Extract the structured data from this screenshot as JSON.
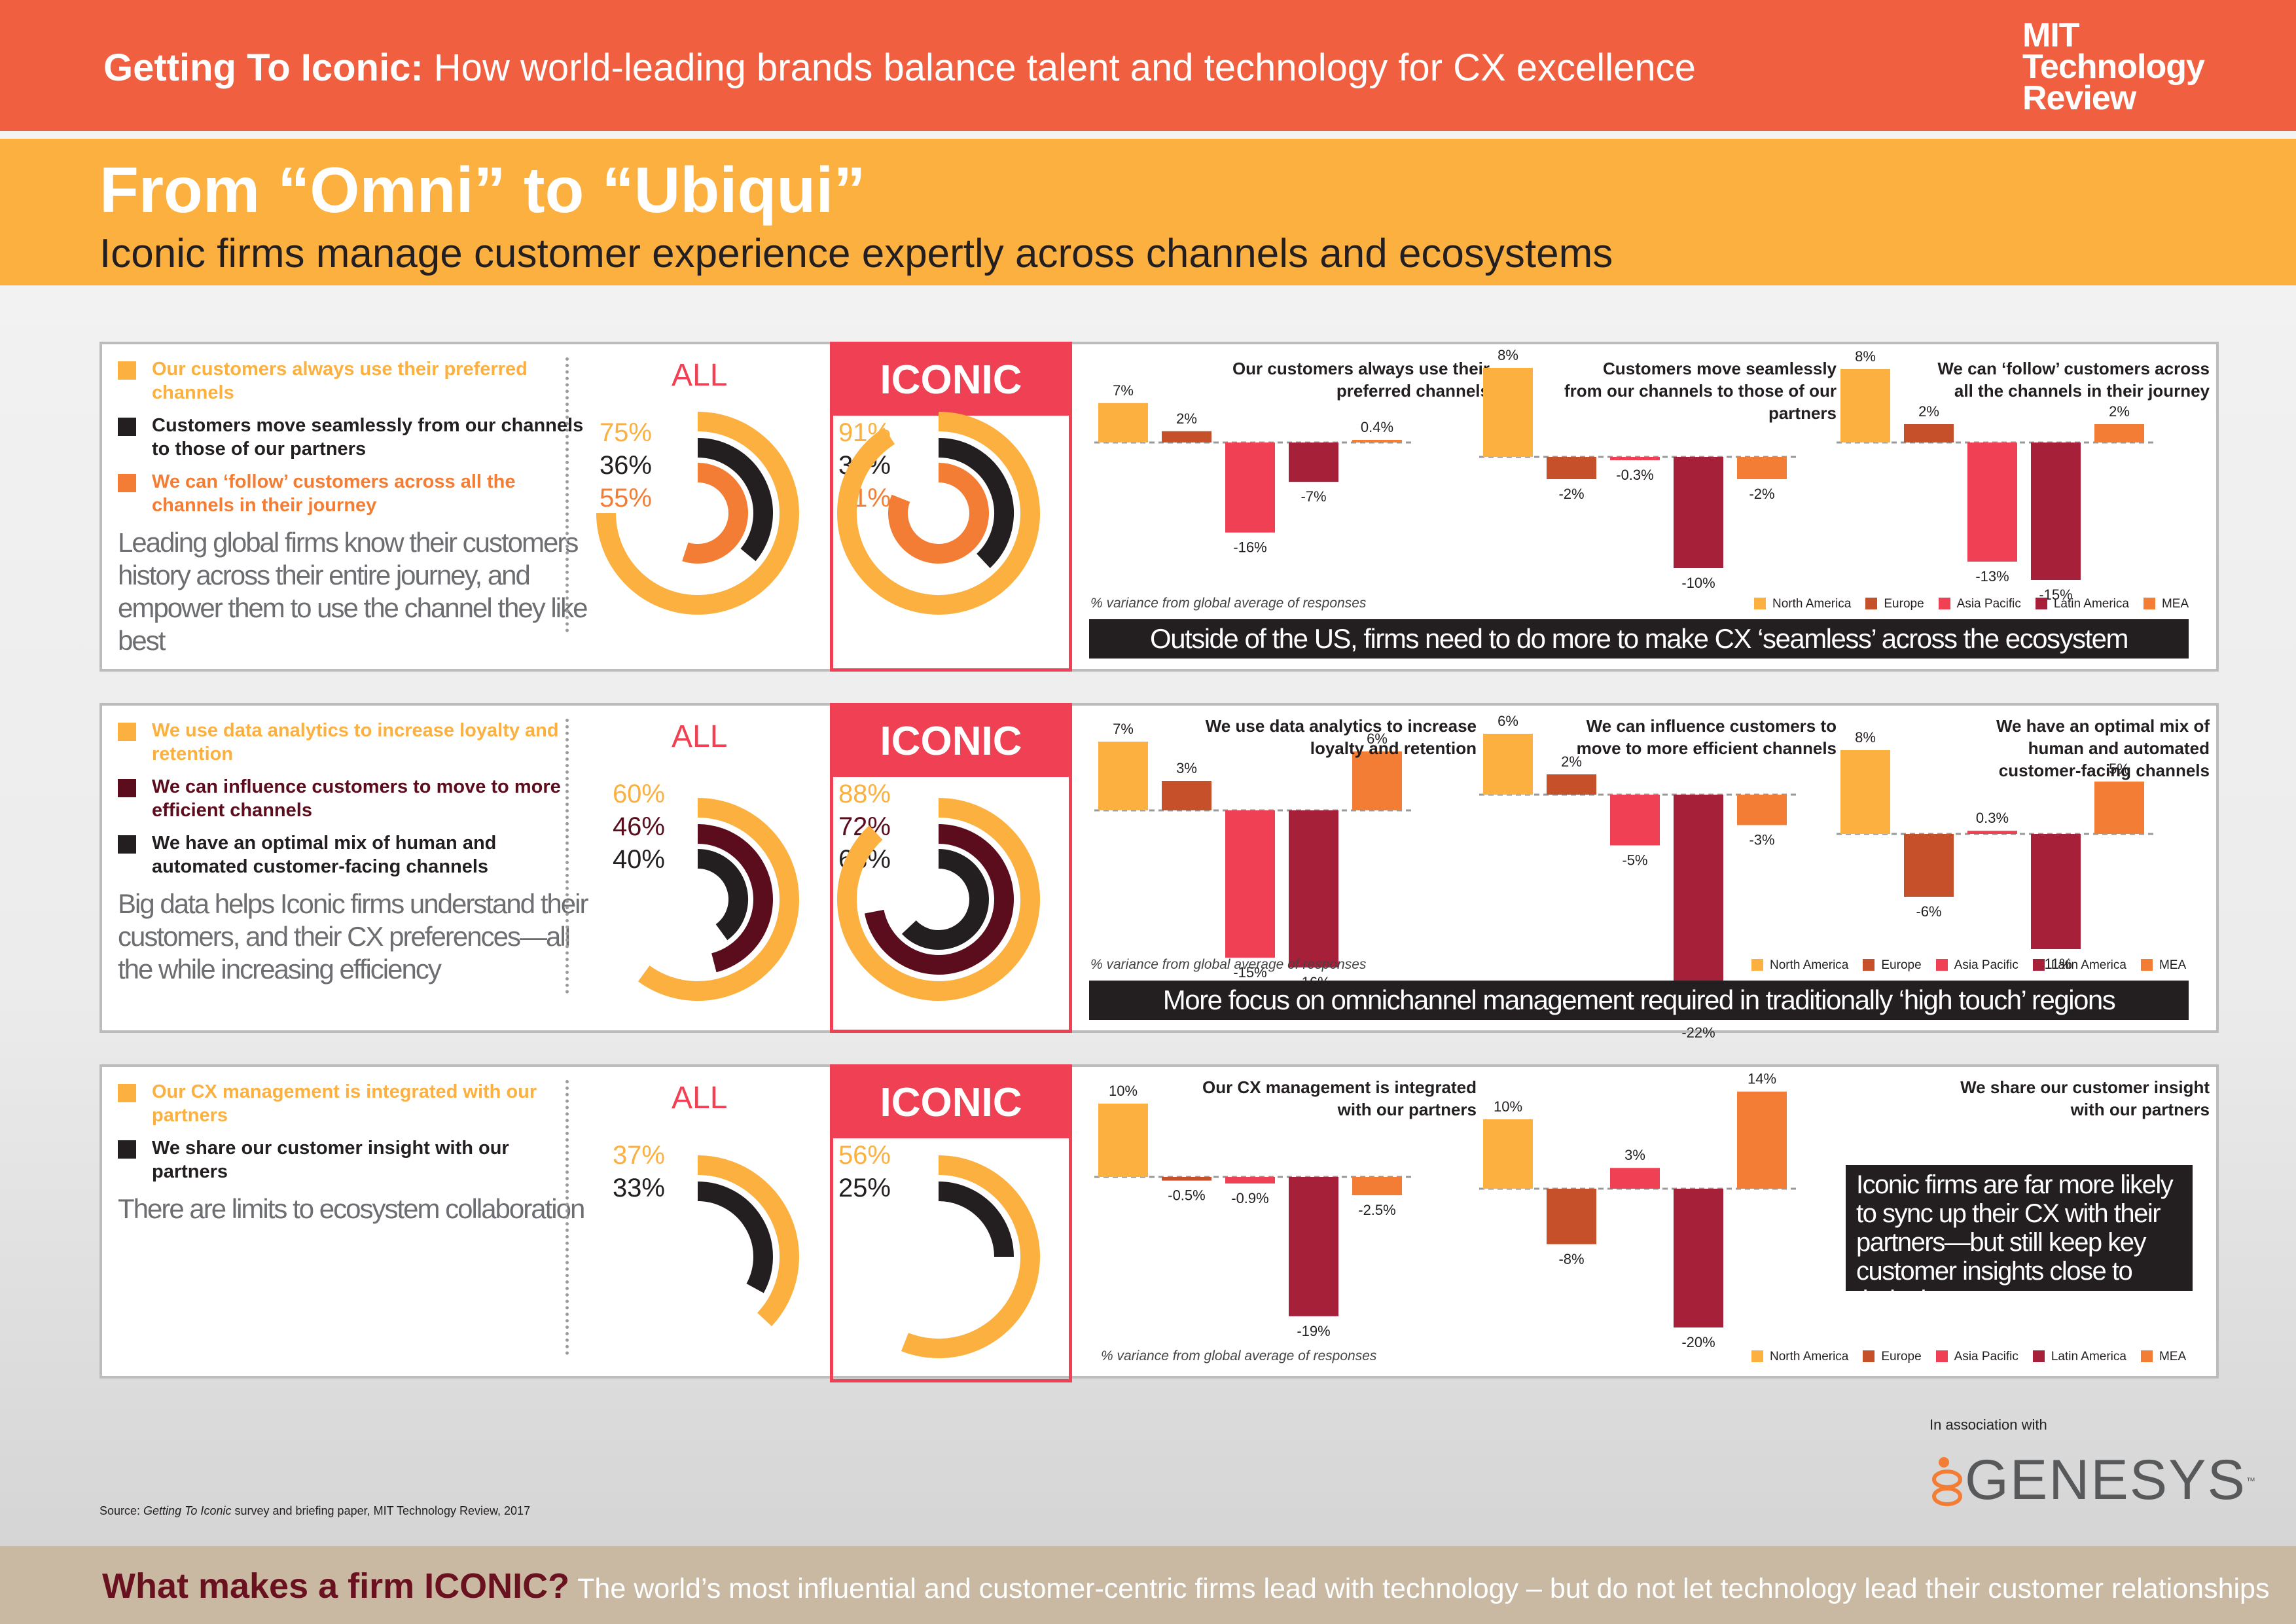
{
  "header": {
    "title_bold": "Getting To Iconic:",
    "title_rest": "How world-leading brands balance talent and technology for CX excellence",
    "logo": [
      "MIT",
      "Technology",
      "Review"
    ]
  },
  "band": {
    "title": "From “Omni” to “Ubiqui”",
    "subtitle": "Iconic firms manage customer experience expertly across channels and ecosystems"
  },
  "colors": {
    "orange": "#fbb040",
    "orange2": "#f47d35",
    "dark": "#231f20",
    "maroon": "#5b0d1e",
    "na": "#fbb040",
    "eu": "#c5502a",
    "ap": "#ef4153",
    "la": "#a6203a",
    "mea": "#f47d35"
  },
  "labels": {
    "all": "ALL",
    "iconic": "ICONIC",
    "variance": "% variance from global average of responses"
  },
  "regions": [
    "North America",
    "Europe",
    "Asia Pacific",
    "Latin America",
    "MEA"
  ],
  "rows": [
    {
      "items": [
        {
          "text": "Our customers always use their preferred channels",
          "color": "#fbb040"
        },
        {
          "text": "Customers move seamlessly from our channels to those of our partners",
          "color": "#231f20"
        },
        {
          "text": "We can ‘follow’ customers across all the channels in their journey",
          "color": "#f47d35"
        }
      ],
      "desc": "Leading global firms know their customers history across their entire journey, and empower them to use the channel they like best",
      "all": [
        "75%",
        "36%",
        "55%"
      ],
      "iconic": [
        "91%",
        "38%",
        "81%"
      ],
      "banner": "Outside of the US, firms need to do more to make CX ‘seamless’ across the ecosystem"
    },
    {
      "items": [
        {
          "text": "We use data analytics to increase loyalty and retention",
          "color": "#fbb040"
        },
        {
          "text": "We can influence customers to move to more efficient channels",
          "color": "#5b0d1e"
        },
        {
          "text": "We have an optimal mix of human and automated customer-facing channels",
          "color": "#231f20"
        }
      ],
      "desc": "Big data helps Iconic firms understand their customers, and their CX preferences—all the while increasing efficiency",
      "all": [
        "60%",
        "46%",
        "40%"
      ],
      "iconic": [
        "88%",
        "72%",
        "63%"
      ],
      "banner": "More focus on omnichannel management required in traditionally ‘high touch’ regions"
    },
    {
      "items": [
        {
          "text": "Our CX management is integrated with our partners",
          "color": "#fbb040"
        },
        {
          "text": "We share our customer insight with our partners",
          "color": "#231f20"
        }
      ],
      "desc": "There are limits to ecosystem collaboration",
      "all": [
        "37%",
        "33%"
      ],
      "iconic": [
        "56%",
        "25%"
      ],
      "callout": "Iconic firms are far more likely to sync up their CX with their partners—but still keep key customer insights close to their chest"
    }
  ],
  "chart_data": [
    {
      "type": "bar",
      "title": "Our customers always use their preferred channels",
      "categories": [
        "North America",
        "Europe",
        "Asia Pacific",
        "Latin America",
        "MEA"
      ],
      "values": [
        7,
        2,
        -16,
        -7,
        0.4
      ],
      "labels": [
        "7%",
        "2%",
        "-16%",
        "-7%",
        "0.4%"
      ]
    },
    {
      "type": "bar",
      "title": "Customers move seamlessly from our channels to those of our partners",
      "categories": [
        "North America",
        "Europe",
        "Asia Pacific",
        "Latin America",
        "MEA"
      ],
      "values": [
        8,
        -2,
        -0.3,
        -10,
        -2
      ],
      "labels": [
        "8%",
        "-2%",
        "-0.3%",
        "-10%",
        "-2%"
      ]
    },
    {
      "type": "bar",
      "title": "We can ‘follow’ customers across all the channels in their journey",
      "categories": [
        "North America",
        "Europe",
        "Asia Pacific",
        "Latin America",
        "MEA"
      ],
      "values": [
        8,
        2,
        -13,
        -15,
        2
      ],
      "labels": [
        "8%",
        "2%",
        "-13%",
        "-15%",
        "2%"
      ]
    },
    {
      "type": "bar",
      "title": "We use data analytics to increase loyalty and retention",
      "categories": [
        "North America",
        "Europe",
        "Asia Pacific",
        "Latin America",
        "MEA"
      ],
      "values": [
        7,
        3,
        -15,
        -16,
        6
      ],
      "labels": [
        "7%",
        "3%",
        "-15%",
        "-16%",
        "6%"
      ]
    },
    {
      "type": "bar",
      "title": "We can influence customers to move to more efficient channels",
      "categories": [
        "North America",
        "Europe",
        "Asia Pacific",
        "Latin America",
        "MEA"
      ],
      "values": [
        6,
        2,
        -5,
        -22,
        -3
      ],
      "labels": [
        "6%",
        "2%",
        "-5%",
        "-22%",
        "-3%"
      ]
    },
    {
      "type": "bar",
      "title": "We have an optimal mix of human and automated customer-facing channels",
      "categories": [
        "North America",
        "Europe",
        "Asia Pacific",
        "Latin America",
        "MEA"
      ],
      "values": [
        8,
        -6,
        0.3,
        -11,
        5
      ],
      "labels": [
        "8%",
        "-6%",
        "0.3%",
        "-11%",
        "5%"
      ]
    },
    {
      "type": "bar",
      "title": "Our CX management is integrated with our partners",
      "categories": [
        "North America",
        "Europe",
        "Asia Pacific",
        "Latin America",
        "MEA"
      ],
      "values": [
        10,
        -0.5,
        -0.9,
        -19,
        -2.5
      ],
      "labels": [
        "10%",
        "-0.5%",
        "-0.9%",
        "-19%",
        "-2.5%"
      ]
    },
    {
      "type": "bar",
      "title": "We share our customer insight with our partners",
      "categories": [
        "North America",
        "Europe",
        "Asia Pacific",
        "Latin America",
        "MEA"
      ],
      "values": [
        10,
        -8,
        3,
        -20,
        14
      ],
      "labels": [
        "10%",
        "-8%",
        "3%",
        "-20%",
        "14%"
      ]
    },
    {
      "type": "pie",
      "title": "ALL / ICONIC radial comparisons",
      "series": [
        {
          "name": "ALL",
          "values": [
            75,
            36,
            55
          ]
        },
        {
          "name": "ICONIC",
          "values": [
            91,
            38,
            81
          ]
        },
        {
          "name": "ALL",
          "values": [
            60,
            46,
            40
          ]
        },
        {
          "name": "ICONIC",
          "values": [
            88,
            72,
            63
          ]
        },
        {
          "name": "ALL",
          "values": [
            37,
            33
          ]
        },
        {
          "name": "ICONIC",
          "values": [
            56,
            25
          ]
        }
      ]
    }
  ],
  "footer": {
    "source_pre": "Source: ",
    "source_em": "Getting To Iconic",
    "source_post": " survey and briefing paper, MIT Technology Review, 2017",
    "assoc": "In association with",
    "partner": "GENESYS",
    "tm": "™",
    "q": "What makes a firm ICONIC?",
    "text": "The world’s most influential and customer-centric firms lead with technology – but do not let technology lead their customer relationships"
  }
}
